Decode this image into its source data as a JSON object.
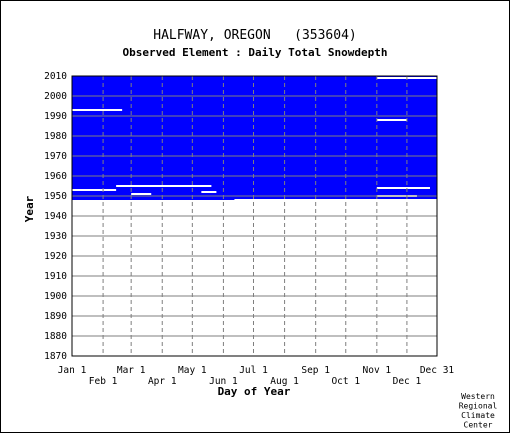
{
  "chart_data": {
    "type": "heatmap",
    "title": "HALFWAY, OREGON   (353604)",
    "subtitle": "Observed Element : Daily Total Snowdepth",
    "xlabel": "Day of Year",
    "ylabel": "Year",
    "credit": [
      "Western",
      "Regional",
      "Climate",
      "Center"
    ],
    "colors": {
      "observed": "#0000ff",
      "grid": "#7f7f7f",
      "background": "#ffffff"
    },
    "x_ticks_top": [
      {
        "label": "Jan 1",
        "day": 1
      },
      {
        "label": "Mar 1",
        "day": 60
      },
      {
        "label": "May 1",
        "day": 121
      },
      {
        "label": "Jul 1",
        "day": 182
      },
      {
        "label": "Sep 1",
        "day": 244
      },
      {
        "label": "Nov 1",
        "day": 305
      },
      {
        "label": "Dec 31",
        "day": 365
      }
    ],
    "x_ticks_bottom": [
      {
        "label": "Feb 1",
        "day": 32
      },
      {
        "label": "Apr 1",
        "day": 91
      },
      {
        "label": "Jun 1",
        "day": 152
      },
      {
        "label": "Aug 1",
        "day": 213
      },
      {
        "label": "Oct 1",
        "day": 274
      },
      {
        "label": "Dec 1",
        "day": 335
      }
    ],
    "y_ticks": [
      1870,
      1880,
      1890,
      1900,
      1910,
      1920,
      1930,
      1940,
      1950,
      1960,
      1970,
      1980,
      1990,
      2000,
      2010
    ],
    "xlim": [
      1,
      365
    ],
    "ylim": [
      1870,
      2010
    ],
    "observed_blocks": [
      {
        "from_year": 1952,
        "to_year": 2010,
        "from_day": 1,
        "to_day": 365
      },
      {
        "from_year": 1948,
        "to_year": 1952,
        "from_day": 1,
        "to_day": 365
      }
    ],
    "missing_bands": [
      {
        "year": 2009,
        "from_day": 305,
        "to_day": 365
      },
      {
        "year": 1993,
        "from_day": 1,
        "to_day": 51
      },
      {
        "year": 1988,
        "from_day": 305,
        "to_day": 335
      },
      {
        "year": 1955,
        "from_day": 45,
        "to_day": 140
      },
      {
        "year": 1954,
        "from_day": 305,
        "to_day": 358
      },
      {
        "year": 1953,
        "from_day": 1,
        "to_day": 45
      },
      {
        "year": 1952,
        "from_day": 130,
        "to_day": 145
      },
      {
        "year": 1951,
        "from_day": 60,
        "to_day": 80
      },
      {
        "year": 1950,
        "from_day": 305,
        "to_day": 345
      },
      {
        "year": 1948,
        "from_day": 163,
        "to_day": 365
      }
    ]
  }
}
